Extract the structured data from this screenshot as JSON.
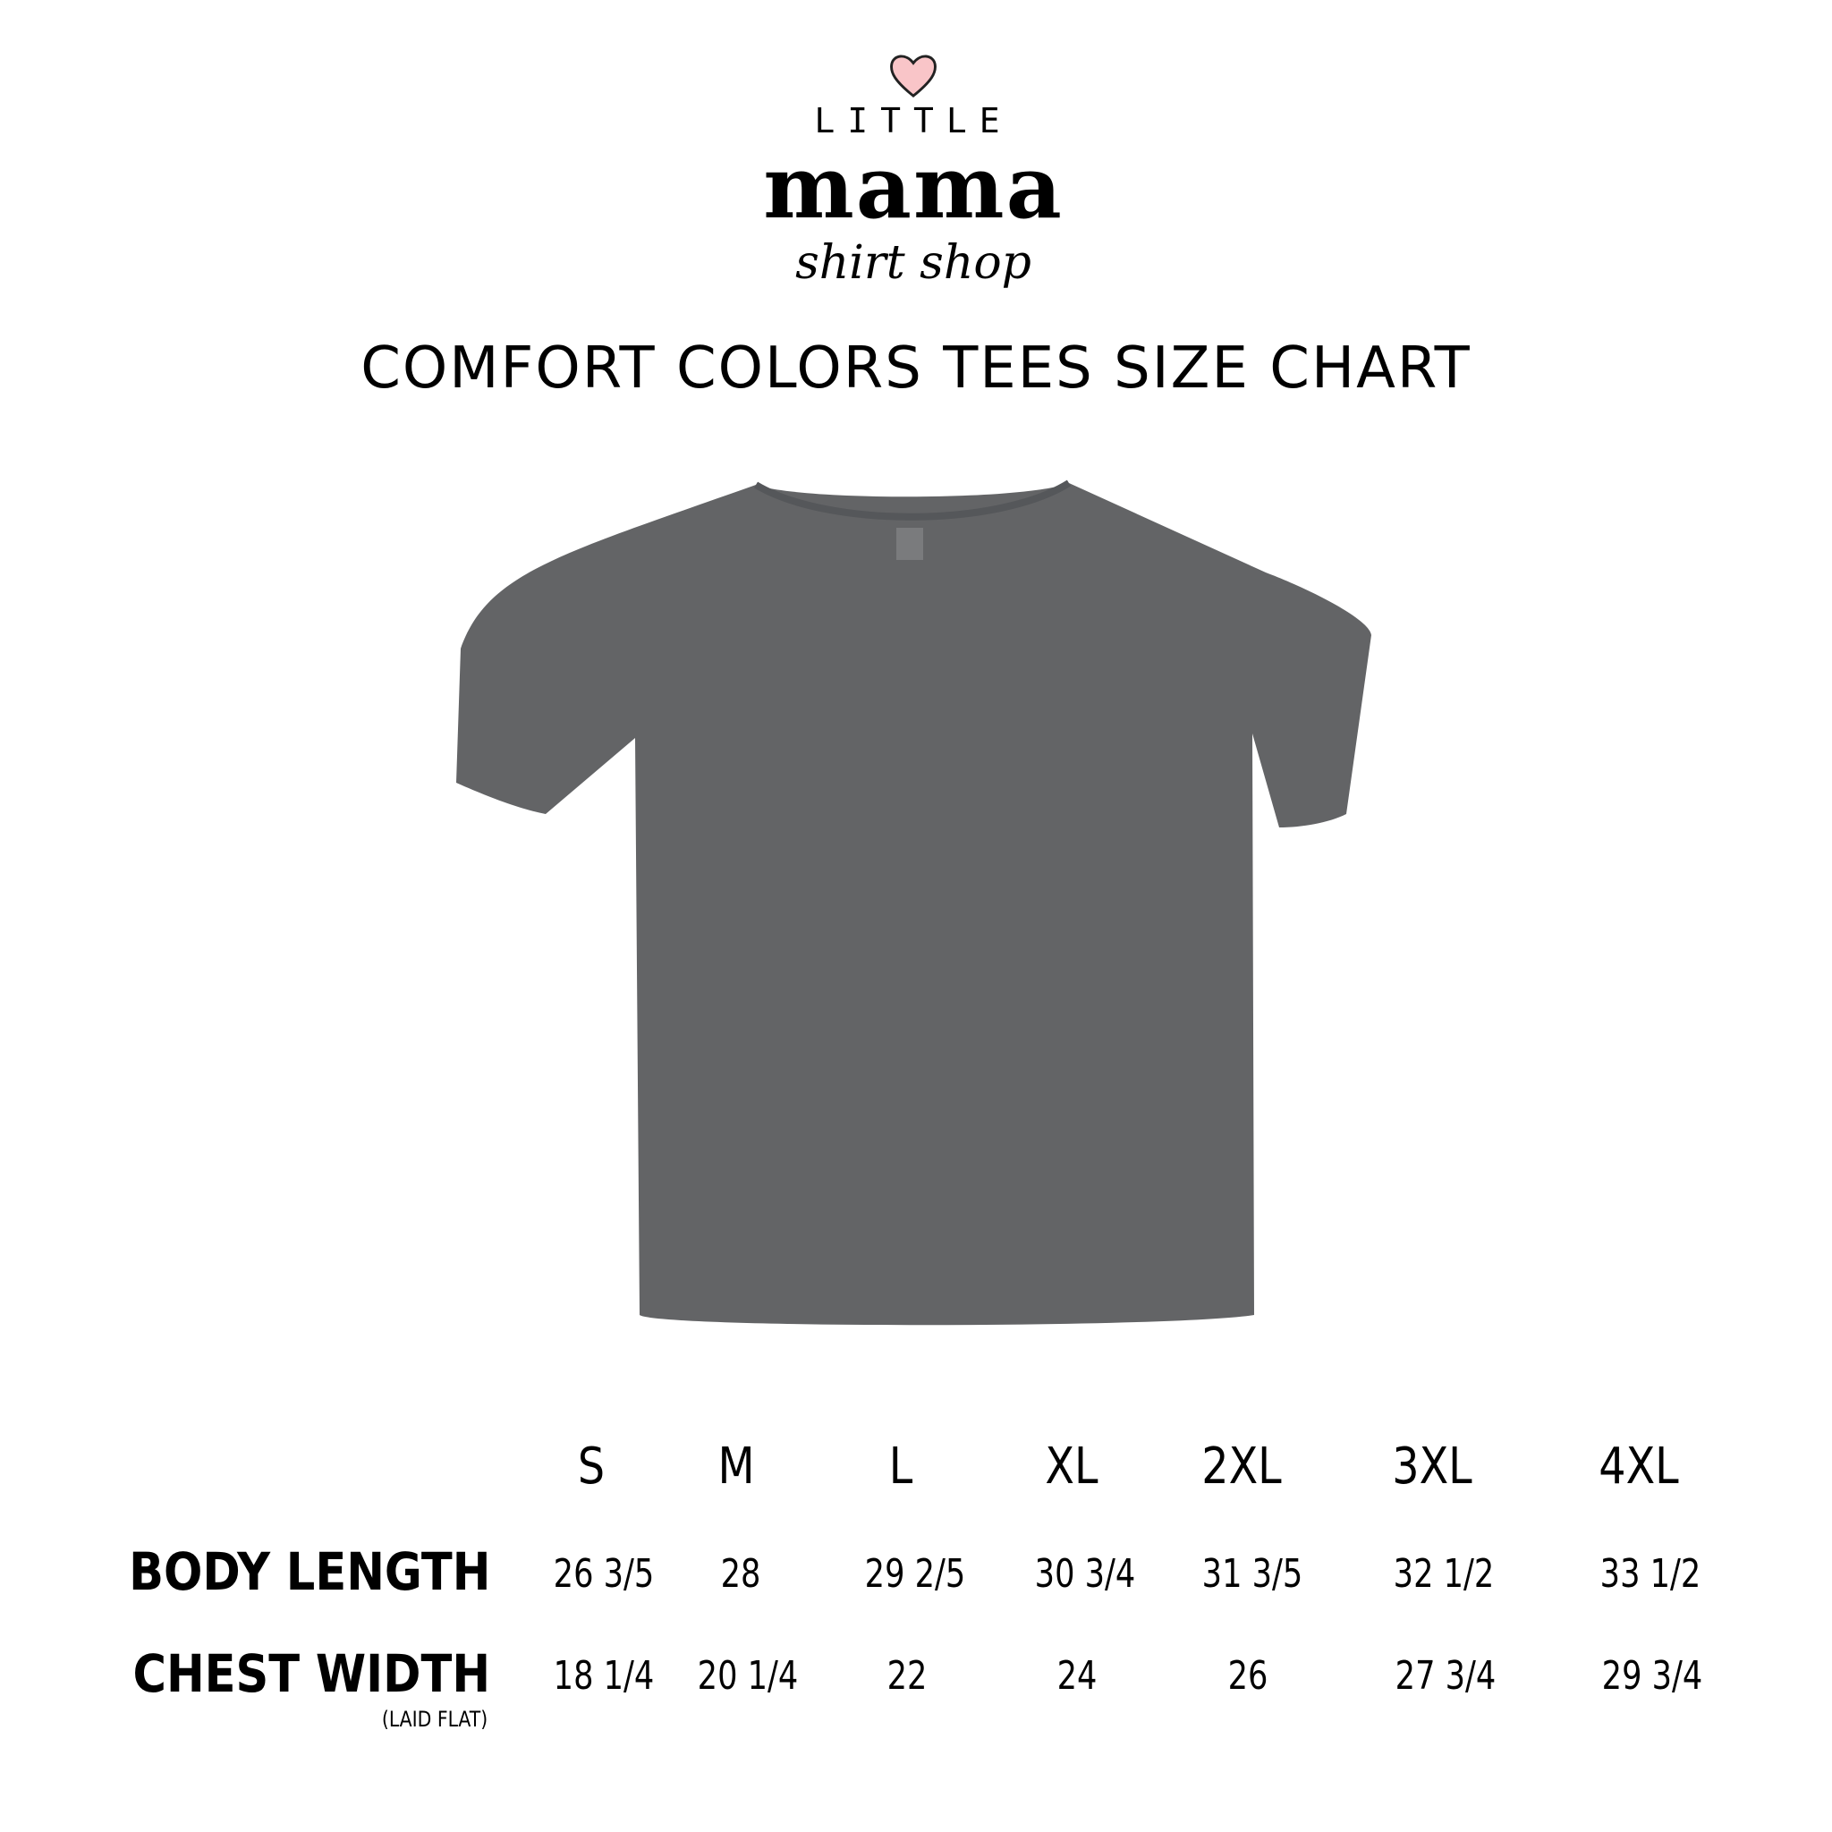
{
  "brand": {
    "line1": "LITTLE",
    "line2": "mama",
    "line3": "shirt shop",
    "heart_color": "#f9c5c8"
  },
  "title": "COMFORT COLORS TEES SIZE CHART",
  "product": {
    "image": "t-shirt",
    "color": "#636466"
  },
  "table": {
    "sizes": [
      "S",
      "M",
      "L",
      "XL",
      "2XL",
      "3XL",
      "4XL"
    ],
    "rows": [
      {
        "label": "BODY LENGTH",
        "note": "",
        "values": [
          "26 3/5",
          "28",
          "29 2/5",
          "30 3/4",
          "31 3/5",
          "32 1/2",
          "33 1/2"
        ]
      },
      {
        "label": "CHEST WIDTH",
        "note": "(LAID FLAT)",
        "values": [
          "18 1/4",
          "20 1/4",
          "22",
          "24",
          "26",
          "27 3/4",
          "29 3/4"
        ]
      }
    ]
  }
}
